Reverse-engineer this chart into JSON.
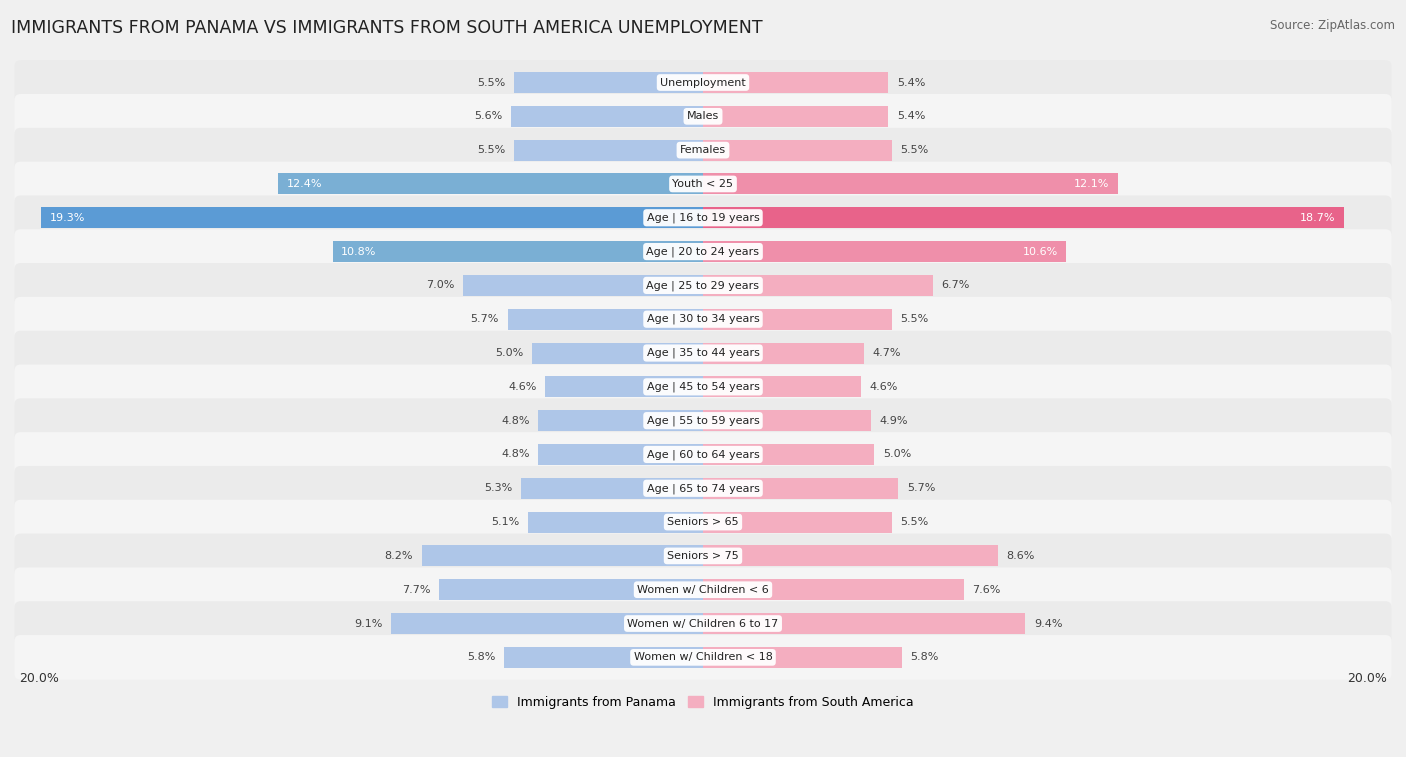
{
  "title": "IMMIGRANTS FROM PANAMA VS IMMIGRANTS FROM SOUTH AMERICA UNEMPLOYMENT",
  "source": "Source: ZipAtlas.com",
  "categories": [
    "Unemployment",
    "Males",
    "Females",
    "Youth < 25",
    "Age | 16 to 19 years",
    "Age | 20 to 24 years",
    "Age | 25 to 29 years",
    "Age | 30 to 34 years",
    "Age | 35 to 44 years",
    "Age | 45 to 54 years",
    "Age | 55 to 59 years",
    "Age | 60 to 64 years",
    "Age | 65 to 74 years",
    "Seniors > 65",
    "Seniors > 75",
    "Women w/ Children < 6",
    "Women w/ Children 6 to 17",
    "Women w/ Children < 18"
  ],
  "panama_values": [
    5.5,
    5.6,
    5.5,
    12.4,
    19.3,
    10.8,
    7.0,
    5.7,
    5.0,
    4.6,
    4.8,
    4.8,
    5.3,
    5.1,
    8.2,
    7.7,
    9.1,
    5.8
  ],
  "south_america_values": [
    5.4,
    5.4,
    5.5,
    12.1,
    18.7,
    10.6,
    6.7,
    5.5,
    4.7,
    4.6,
    4.9,
    5.0,
    5.7,
    5.5,
    8.6,
    7.6,
    9.4,
    5.8
  ],
  "panama_color_light": "#aec6e8",
  "panama_color_mid": "#7aafd4",
  "panama_color_dark": "#5b9bd5",
  "south_america_color_light": "#f4aec0",
  "south_america_color_mid": "#ef8faa",
  "south_america_color_dark": "#e8638a",
  "row_color_even": "#ebebeb",
  "row_color_odd": "#f5f5f5",
  "bg_color": "#f0f0f0",
  "label_color_dark": "#444444",
  "label_color_white": "#ffffff",
  "center_box_color": "#ffffff",
  "max_value": 20.0,
  "title_fontsize": 12.5,
  "source_fontsize": 8.5,
  "bar_label_fontsize": 8.0,
  "category_fontsize": 8.0,
  "legend_fontsize": 9.0
}
